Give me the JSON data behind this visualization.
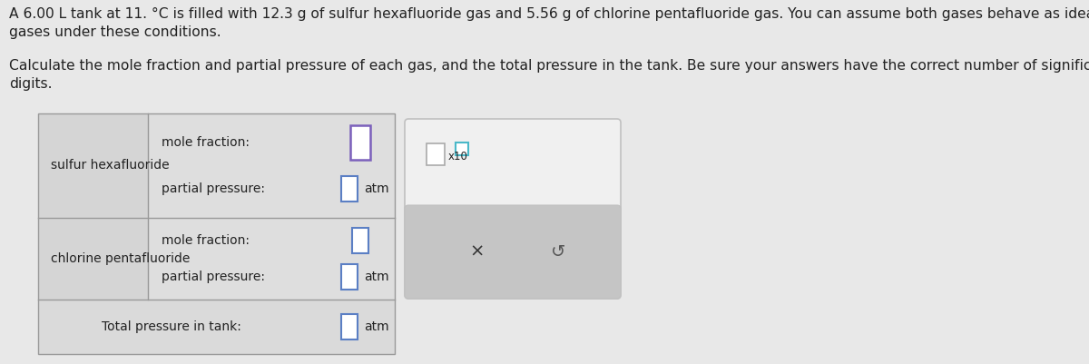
{
  "title_text": "A 6.00 L tank at 11. °C is filled with 12.3 g of sulfur hexafluoride gas and 5.56 g of chlorine pentafluoride gas. You can assume both gases behave as ideal\ngases under these conditions.",
  "subtitle_text": "Calculate the mole fraction and partial pressure of each gas, and the total pressure in the tank. Be sure your answers have the correct number of significant\ndigits.",
  "gas1_label": "sulfur hexafluoride",
  "gas2_label": "chlorine pentafluoride",
  "mole_fraction_label": "mole fraction:",
  "partial_pressure_label": "partial pressure:",
  "total_pressure_label": "Total pressure in tank:",
  "atm_label": "atm",
  "x10_label": "x10",
  "bg_color": "#e8e8e8",
  "table_left_col_bg": "#d8d8d8",
  "table_right_col_bg": "#e0e0e0",
  "table_bottom_row_bg": "#e4e4e4",
  "table_border_color": "#aaaaaa",
  "input_box_border": "#5b7fc4",
  "input_mf_border": "#8b5fc4",
  "popup_bg": "#f8f8f8",
  "popup_btn_bg": "#c8c8c8",
  "text_color": "#222222",
  "font_size_title": 11.2,
  "font_size_table": 10.0,
  "font_size_atm": 10.0,
  "font_size_x10": 8.5,
  "font_size_btn": 14
}
